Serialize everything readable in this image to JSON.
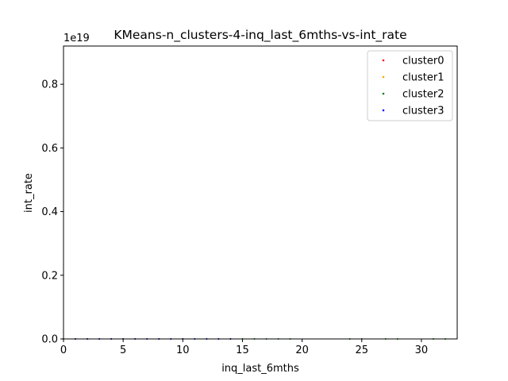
{
  "chart_data": {
    "type": "scatter",
    "title": "KMeans-n_clusters-4-inq_last_6mths-vs-int_rate",
    "xlabel": "inq_last_6mths",
    "ylabel": "int_rate",
    "y_offset_label": "1e19",
    "xlim": [
      0,
      33
    ],
    "ylim": [
      0,
      0.92
    ],
    "y_scale_note": "values in units of 1e19",
    "x_ticks": [
      0,
      5,
      10,
      15,
      20,
      25,
      30
    ],
    "y_ticks": [
      0.0,
      0.2,
      0.4,
      0.6,
      0.8
    ],
    "x_tick_labels": [
      "0",
      "5",
      "10",
      "15",
      "20",
      "25",
      "30"
    ],
    "y_tick_labels": [
      "0.0",
      "0.2",
      "0.4",
      "0.6",
      "0.8"
    ],
    "legend_position": "top-right",
    "grid": false,
    "series": [
      {
        "name": "cluster0",
        "color": "#ff0000",
        "x": [
          0,
          1,
          2,
          3,
          4,
          5,
          6,
          7
        ],
        "y": [
          0,
          0,
          0,
          0,
          0,
          0,
          0,
          0
        ]
      },
      {
        "name": "cluster1",
        "color": "#ffa500",
        "x": [
          0,
          1,
          2,
          3,
          4,
          5,
          6,
          7,
          8
        ],
        "y": [
          0,
          0,
          0,
          0,
          0,
          0,
          0,
          0,
          0
        ]
      },
      {
        "name": "cluster2",
        "color": "#008000",
        "x": [
          8,
          9,
          10,
          11,
          12,
          13,
          14,
          15,
          16,
          17,
          18,
          19,
          24,
          25,
          27,
          28,
          31,
          32
        ],
        "y": [
          0,
          0,
          0,
          0,
          0,
          0,
          0,
          0,
          0,
          0,
          0,
          0,
          0,
          0,
          0,
          0,
          0,
          0
        ]
      },
      {
        "name": "cluster3",
        "color": "#0000ff",
        "x": [
          1,
          2,
          3,
          4,
          5,
          6,
          7,
          8,
          9,
          10,
          11,
          12,
          13,
          14
        ],
        "y": [
          0,
          0,
          0,
          0,
          0,
          0,
          0,
          0,
          0,
          0,
          0,
          0,
          0,
          0
        ]
      }
    ]
  }
}
